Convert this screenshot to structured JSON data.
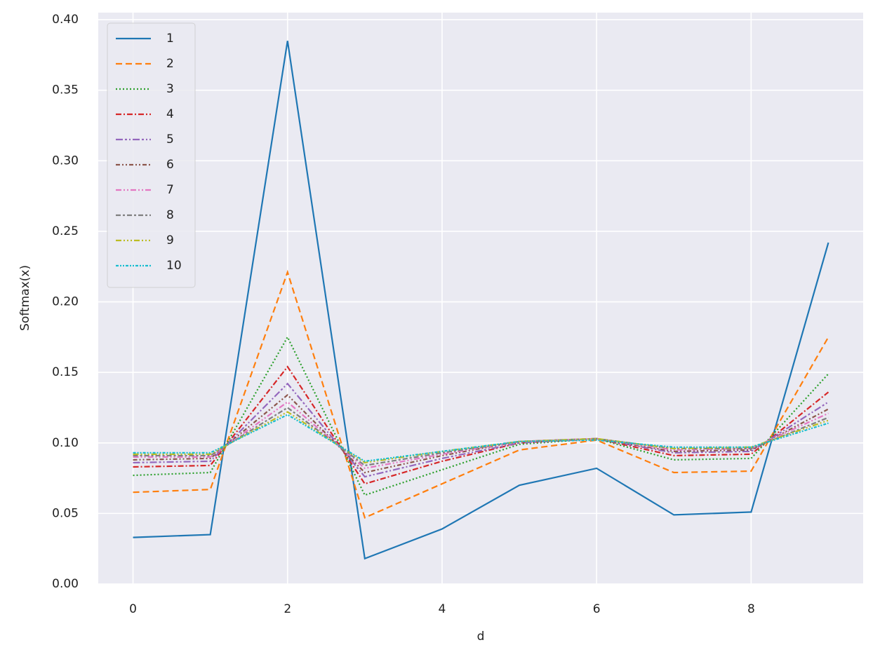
{
  "chart_data": {
    "type": "line",
    "x_label": "d",
    "y_label": "Softmax(x)",
    "x": [
      0,
      1,
      2,
      3,
      4,
      5,
      6,
      7,
      8,
      9
    ],
    "xlim": [
      -0.45,
      9.45
    ],
    "xticks": [
      0,
      2,
      4,
      6,
      8
    ],
    "ylim": [
      0,
      0.405
    ],
    "yticks": [
      {
        "value": 0,
        "label": "0.00"
      },
      {
        "value": 0.05,
        "label": "0.05"
      },
      {
        "value": 0.1,
        "label": "0.10"
      },
      {
        "value": 0.15,
        "label": "0.15"
      },
      {
        "value": 0.2,
        "label": "0.20"
      },
      {
        "value": 0.25,
        "label": "0.25"
      },
      {
        "value": 0.3,
        "label": "0.30"
      },
      {
        "value": 0.35,
        "label": "0.35"
      },
      {
        "value": 0.4,
        "label": "0.40"
      }
    ],
    "grid": true,
    "legend": "upper left",
    "series": [
      {
        "name": "1",
        "color": "#1f77b4",
        "values": [
          0.033,
          0.035,
          0.385,
          0.018,
          0.039,
          0.07,
          0.082,
          0.049,
          0.051,
          0.242
        ]
      },
      {
        "name": "2",
        "color": "#ff7f0e",
        "values": [
          0.065,
          0.067,
          0.221,
          0.047,
          0.071,
          0.095,
          0.102,
          0.079,
          0.08,
          0.175
        ]
      },
      {
        "name": "3",
        "color": "#2ca02c",
        "values": [
          0.077,
          0.079,
          0.175,
          0.063,
          0.081,
          0.099,
          0.103,
          0.088,
          0.089,
          0.149
        ]
      },
      {
        "name": "4",
        "color": "#d62728",
        "values": [
          0.083,
          0.084,
          0.154,
          0.071,
          0.087,
          0.1,
          0.103,
          0.091,
          0.092,
          0.136
        ]
      },
      {
        "name": "5",
        "color": "#9467bd",
        "values": [
          0.086,
          0.087,
          0.142,
          0.076,
          0.089,
          0.1,
          0.103,
          0.093,
          0.094,
          0.129
        ]
      },
      {
        "name": "6",
        "color": "#8c564b",
        "values": [
          0.088,
          0.089,
          0.134,
          0.079,
          0.091,
          0.101,
          0.103,
          0.094,
          0.095,
          0.124
        ]
      },
      {
        "name": "7",
        "color": "#e377c2",
        "values": [
          0.09,
          0.09,
          0.129,
          0.082,
          0.092,
          0.101,
          0.103,
          0.095,
          0.096,
          0.121
        ]
      },
      {
        "name": "8",
        "color": "#7f7f7f",
        "values": [
          0.091,
          0.091,
          0.125,
          0.084,
          0.093,
          0.101,
          0.103,
          0.096,
          0.096,
          0.118
        ]
      },
      {
        "name": "9",
        "color": "#bcbd22",
        "values": [
          0.092,
          0.092,
          0.122,
          0.086,
          0.094,
          0.101,
          0.103,
          0.096,
          0.097,
          0.116
        ]
      },
      {
        "name": "10",
        "color": "#17becf",
        "values": [
          0.093,
          0.093,
          0.12,
          0.087,
          0.094,
          0.101,
          0.102,
          0.097,
          0.097,
          0.114
        ]
      }
    ]
  }
}
